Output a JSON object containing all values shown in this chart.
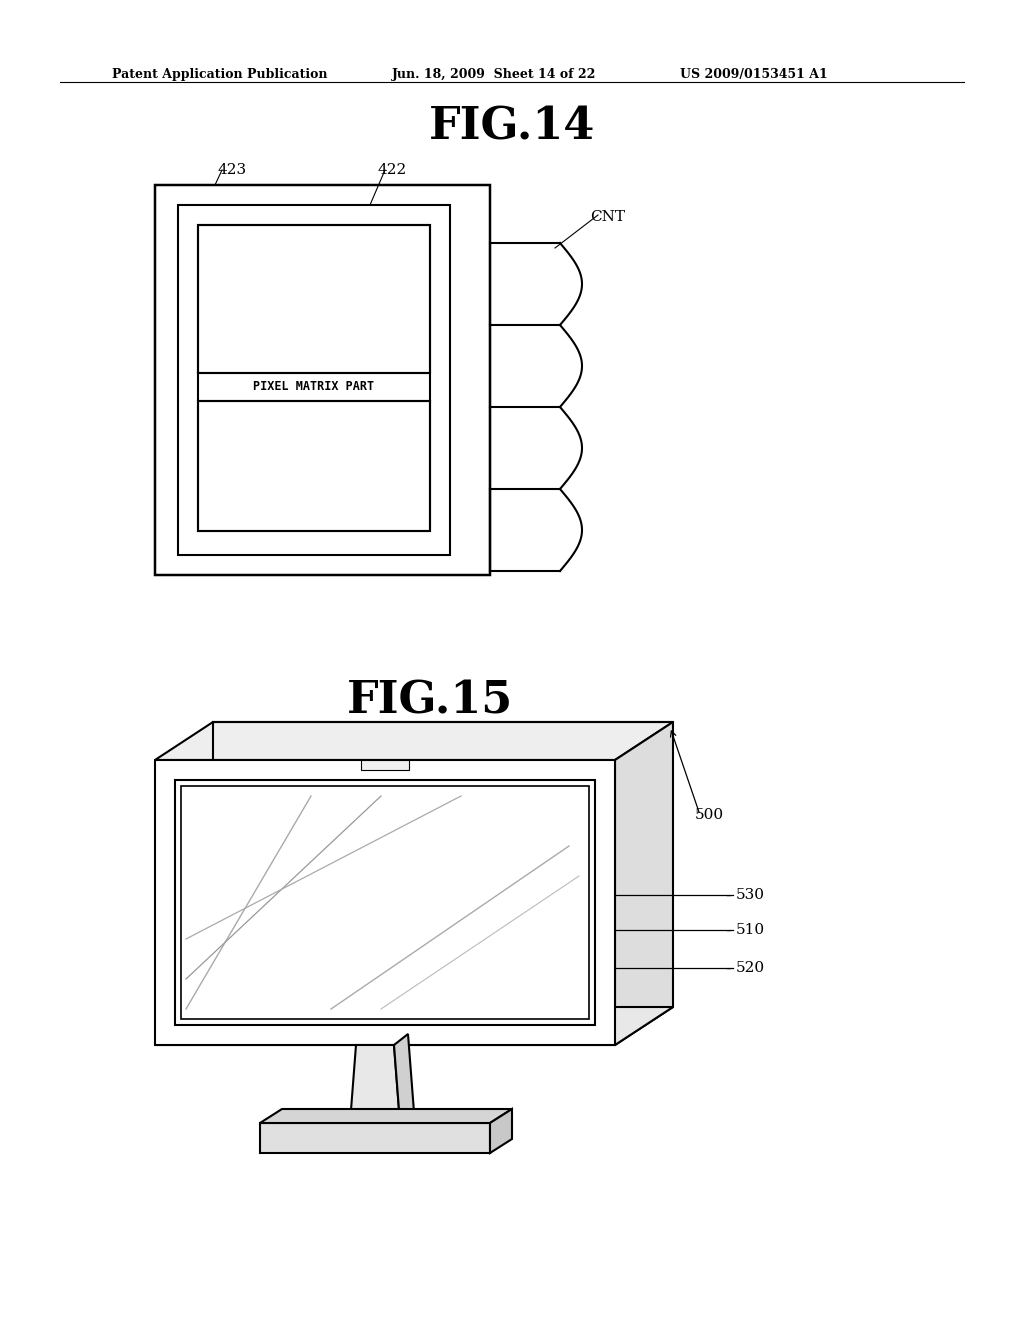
{
  "background_color": "#ffffff",
  "header_text": "Patent Application Publication",
  "header_date": "Jun. 18, 2009  Sheet 14 of 22",
  "header_patent": "US 2009/0153451 A1",
  "fig14_title": "FIG.14",
  "fig15_title": "FIG.15",
  "label_423": "423",
  "label_422": "422",
  "label_CNT": "CNT",
  "label_500": "500",
  "label_530": "530",
  "label_510": "510",
  "label_520": "520",
  "pixel_matrix_text": "PIXEL MATRIX PART",
  "line_color": "#000000",
  "line_width": 1.5
}
